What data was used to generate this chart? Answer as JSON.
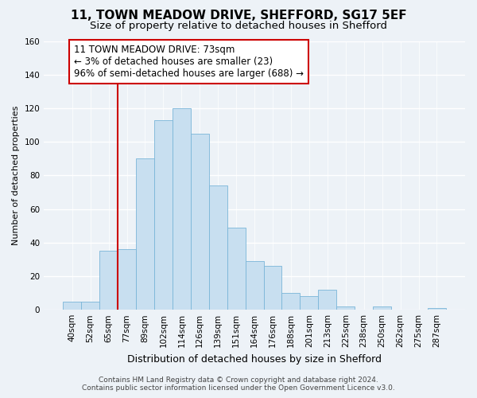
{
  "title": "11, TOWN MEADOW DRIVE, SHEFFORD, SG17 5EF",
  "subtitle": "Size of property relative to detached houses in Shefford",
  "xlabel": "Distribution of detached houses by size in Shefford",
  "ylabel": "Number of detached properties",
  "bar_labels": [
    "40sqm",
    "52sqm",
    "65sqm",
    "77sqm",
    "89sqm",
    "102sqm",
    "114sqm",
    "126sqm",
    "139sqm",
    "151sqm",
    "164sqm",
    "176sqm",
    "188sqm",
    "201sqm",
    "213sqm",
    "225sqm",
    "238sqm",
    "250sqm",
    "262sqm",
    "275sqm",
    "287sqm"
  ],
  "bar_values": [
    5,
    5,
    35,
    36,
    90,
    113,
    120,
    105,
    74,
    49,
    29,
    26,
    10,
    8,
    12,
    2,
    0,
    2,
    0,
    0,
    1
  ],
  "bar_color": "#c8dff0",
  "bar_edge_color": "#7ab5d8",
  "ylim": [
    0,
    160
  ],
  "yticks": [
    0,
    20,
    40,
    60,
    80,
    100,
    120,
    140,
    160
  ],
  "vline_color": "#cc0000",
  "annotation_line1": "11 TOWN MEADOW DRIVE: 73sqm",
  "annotation_line2": "← 3% of detached houses are smaller (23)",
  "annotation_line3": "96% of semi-detached houses are larger (688) →",
  "annotation_box_color": "#ffffff",
  "annotation_box_edge": "#cc0000",
  "footer_line1": "Contains HM Land Registry data © Crown copyright and database right 2024.",
  "footer_line2": "Contains public sector information licensed under the Open Government Licence v3.0.",
  "bg_color": "#edf2f7",
  "grid_color": "#ffffff",
  "title_fontsize": 11,
  "subtitle_fontsize": 9.5,
  "xlabel_fontsize": 9,
  "ylabel_fontsize": 8,
  "tick_fontsize": 7.5,
  "annotation_fontsize": 8.5,
  "footer_fontsize": 6.5
}
